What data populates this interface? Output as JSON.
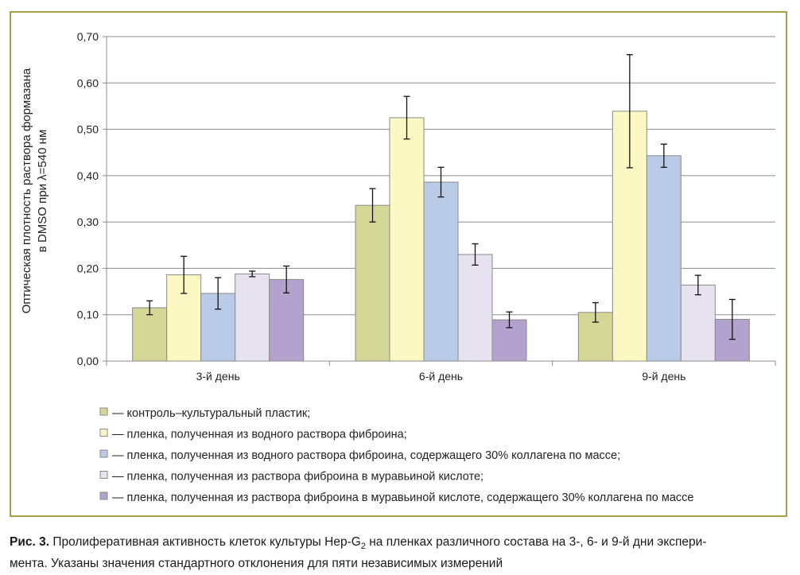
{
  "chart_data": {
    "type": "bar",
    "ylabel_line1": "Оптическая плотность  раствора формазана",
    "ylabel_line2": "в DMSO при λ=540 нм",
    "ylim": [
      0,
      0.7
    ],
    "y_ticks": [
      "0,00",
      "0,10",
      "0,20",
      "0,30",
      "0,40",
      "0,50",
      "0,60",
      "0,70"
    ],
    "grid": true,
    "categories": [
      "3-й день",
      "6-й день",
      "9-й день"
    ],
    "series": [
      {
        "name": "— контроль–культуральный пластик;",
        "color": "#d5d796",
        "values": [
          0.115,
          0.336,
          0.105
        ],
        "errors": [
          0.015,
          0.036,
          0.021
        ]
      },
      {
        "name": "— пленка, полученная из водного раствора фиброина;",
        "color": "#fbf8c3",
        "values": [
          0.186,
          0.525,
          0.539
        ],
        "errors": [
          0.04,
          0.046,
          0.122
        ]
      },
      {
        "name": "— пленка, полученная из водного раствора фиброина, содержащего 30% коллагена по массе;",
        "color": "#b9cbe6",
        "values": [
          0.146,
          0.386,
          0.443
        ],
        "errors": [
          0.034,
          0.032,
          0.025
        ]
      },
      {
        "name": "— пленка, полученная из раствора фиброина в муравьиной кислоте;",
        "color": "#e7e2ef",
        "values": [
          0.188,
          0.23,
          0.164
        ],
        "errors": [
          0.006,
          0.023,
          0.021
        ]
      },
      {
        "name": "— пленка, полученная из раствора фиброина в муравьиной кислоте, содержащего 30% коллагена по массе",
        "color": "#b3a2cd",
        "values": [
          0.176,
          0.089,
          0.09
        ],
        "errors": [
          0.029,
          0.017,
          0.043
        ]
      }
    ]
  },
  "caption": {
    "label": "Рис. 3.",
    "text_before_sub": " Пролиферативная активность клеток культуры Hep-G",
    "sub": "2",
    "text_after_sub": " на пленках различного состава на 3-, 6- и 9-й дни экспери-",
    "line2": "мента. Указаны значения стандартного отклонения для пяти независимых измерений"
  }
}
